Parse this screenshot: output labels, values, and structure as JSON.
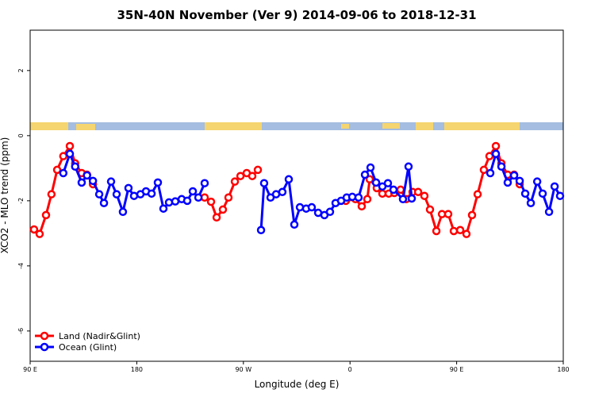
{
  "chart_data": {
    "type": "line",
    "title": "35N-40N November (Ver 9)   2014-09-06 to 2018-12-31",
    "x_label": "Longitude (deg E)",
    "y_label": "XCO2 - MLO trend (ppm)",
    "xlim": [
      90,
      540
    ],
    "xticks": [
      {
        "value": 90,
        "label": "90 E"
      },
      {
        "value": 180,
        "label": "180"
      },
      {
        "value": 270,
        "label": "90 W"
      },
      {
        "value": 360,
        "label": "0"
      },
      {
        "value": 450,
        "label": "90 E"
      },
      {
        "value": 540,
        "label": "180"
      }
    ],
    "ylim": [
      -6.93,
      3.24
    ],
    "yticks": [
      -6,
      -4,
      -2,
      0,
      2
    ],
    "legend": "bottom-left",
    "series": [
      {
        "name": "Land (Nadir&Glint)",
        "color": "#ff0000",
        "x": [
          93.3,
          98,
          103.4,
          108,
          112.8,
          118,
          123.5,
          128,
          133.5,
          138,
          143,
          null,
          237.3,
          242.7,
          247.4,
          252.7,
          257.4,
          262.8,
          267.5,
          272.8,
          277.5,
          282.2,
          null,
          356.5,
          364.6,
          369.9,
          374.6,
          376.6,
          382.6,
          387.3,
          392.7,
          397.4,
          402.7,
          407.4,
          412.8,
          417.5,
          422.8,
          427.5,
          432.9,
          437.6,
          442.9,
          447.6,
          453,
          458.3,
          463,
          467.7,
          473,
          477.7,
          483.1,
          487.8,
          493.1,
          498.5,
          503.2
        ],
        "values": [
          -2.88,
          -3.02,
          -2.44,
          -1.8,
          -1.05,
          -0.63,
          -0.32,
          -0.85,
          -1.15,
          -1.2,
          -1.49,
          null,
          -1.9,
          -2.03,
          -2.51,
          -2.27,
          -1.9,
          -1.41,
          -1.24,
          -1.15,
          -1.24,
          -1.05,
          null,
          -2.0,
          -1.95,
          -2.17,
          -1.95,
          -1.34,
          -1.61,
          -1.78,
          -1.78,
          -1.76,
          -1.66,
          -1.95,
          -1.73,
          -1.73,
          -1.85,
          -2.27,
          -2.93,
          -2.41,
          -2.41,
          -2.93,
          -2.9,
          -3.02,
          -2.44,
          -1.8,
          -1.05,
          -0.63,
          -0.32,
          -0.85,
          -1.2,
          -1.2,
          -1.49
        ]
      },
      {
        "name": "Ocean (Glint)",
        "color": "#0000ff",
        "x": [
          118,
          123.5,
          128,
          133.5,
          138,
          143,
          148.3,
          152.3,
          158.3,
          163,
          168.3,
          173,
          177.7,
          183.1,
          187.8,
          192.5,
          197.8,
          202.5,
          207.2,
          212.5,
          217.9,
          222.6,
          227.3,
          232,
          237.3,
          null,
          284.9,
          287.5,
          292.9,
          297.6,
          302.9,
          308.3,
          313,
          317.7,
          323,
          327.7,
          333.1,
          338.4,
          343.1,
          347.8,
          352.5,
          357.2,
          361.9,
          367.2,
          372.6,
          377.3,
          382,
          387.3,
          392,
          396.7,
          404.7,
          409.4,
          412.1,
          null,
          478.4,
          483.1,
          487.8,
          493.1,
          498.5,
          503.2,
          507.9,
          512.6,
          518,
          522.6,
          528,
          532.7,
          537.3
        ],
        "values": [
          -1.15,
          -0.56,
          -0.95,
          -1.44,
          -1.22,
          -1.39,
          -1.8,
          -2.07,
          -1.41,
          -1.8,
          -2.34,
          -1.61,
          -1.85,
          -1.8,
          -1.71,
          -1.78,
          -1.44,
          -2.24,
          -2.05,
          -2.02,
          -1.95,
          -2.0,
          -1.71,
          -1.9,
          -1.46,
          null,
          -2.9,
          -1.46,
          -1.9,
          -1.8,
          -1.73,
          -1.34,
          -2.73,
          -2.2,
          -2.24,
          -2.2,
          -2.37,
          -2.44,
          -2.34,
          -2.07,
          -2.0,
          -1.9,
          -1.88,
          -1.9,
          -1.2,
          -0.98,
          -1.44,
          -1.56,
          -1.46,
          -1.66,
          -1.95,
          -0.95,
          -1.93,
          null,
          -1.15,
          -0.56,
          -0.95,
          -1.44,
          -1.22,
          -1.39,
          -1.78,
          -2.07,
          -1.41,
          -1.78,
          -2.34,
          -1.56,
          -1.85
        ]
      }
    ]
  }
}
